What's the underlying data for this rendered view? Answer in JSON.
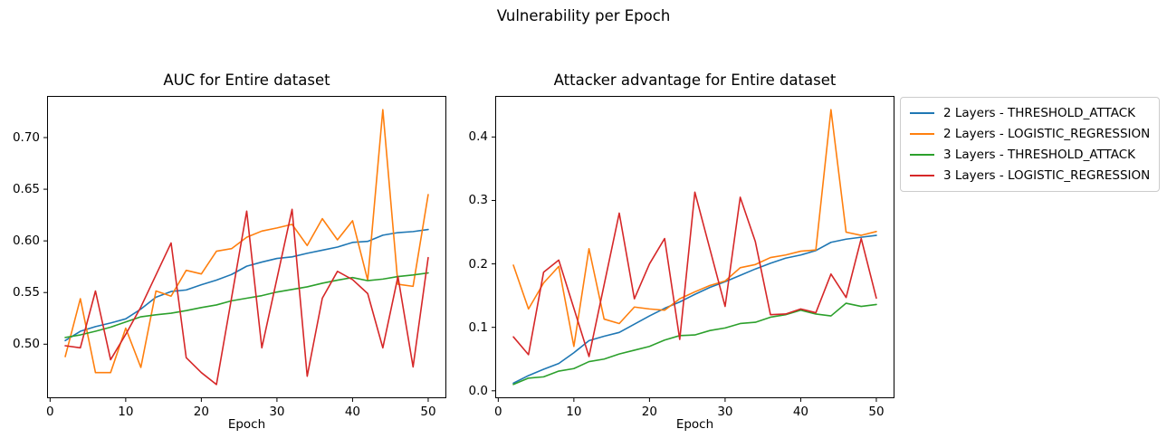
{
  "figure": {
    "title": "Vulnerability per Epoch",
    "background": "#ffffff"
  },
  "legend": {
    "entries": [
      {
        "label": "2 Layers - THRESHOLD_ATTACK",
        "color": "#1f77b4"
      },
      {
        "label": "2 Layers - LOGISTIC_REGRESSION",
        "color": "#ff7f0e"
      },
      {
        "label": "3 Layers - THRESHOLD_ATTACK",
        "color": "#2ca02c"
      },
      {
        "label": "3 Layers - LOGISTIC_REGRESSION",
        "color": "#d62728"
      }
    ]
  },
  "chart_data": [
    {
      "type": "line",
      "title": "AUC for Entire dataset",
      "xlabel": "Epoch",
      "ylabel": "",
      "grid": false,
      "x": [
        2,
        4,
        6,
        8,
        10,
        12,
        14,
        16,
        18,
        20,
        22,
        24,
        26,
        28,
        30,
        32,
        34,
        36,
        38,
        40,
        42,
        44,
        46,
        48,
        50
      ],
      "xlim": [
        -0.4,
        52.4
      ],
      "ylim": [
        0.4477,
        0.7403
      ],
      "x_ticks": {
        "values": [
          0,
          10,
          20,
          30,
          40,
          50
        ],
        "labels": [
          "0",
          "10",
          "20",
          "30",
          "40",
          "50"
        ]
      },
      "y_ticks": {
        "values": [
          0.5,
          0.55,
          0.6,
          0.65,
          0.7
        ],
        "labels": [
          "0.50",
          "0.55",
          "0.60",
          "0.65",
          "0.70"
        ]
      },
      "series": [
        {
          "name": "2 Layers - THRESHOLD_ATTACK",
          "color": "#1f77b4",
          "values": [
            0.5035,
            0.5125,
            0.517,
            0.5205,
            0.5245,
            0.534,
            0.5455,
            0.551,
            0.5525,
            0.5575,
            0.562,
            0.5675,
            0.5755,
            0.5795,
            0.583,
            0.5845,
            0.588,
            0.591,
            0.594,
            0.5985,
            0.5995,
            0.6055,
            0.608,
            0.609,
            0.611
          ]
        },
        {
          "name": "2 Layers - LOGISTIC_REGRESSION",
          "color": "#ff7f0e",
          "values": [
            0.488,
            0.544,
            0.4725,
            0.4725,
            0.5155,
            0.4775,
            0.5515,
            0.5465,
            0.5715,
            0.568,
            0.59,
            0.5925,
            0.6035,
            0.6095,
            0.6125,
            0.616,
            0.5955,
            0.6215,
            0.601,
            0.6195,
            0.562,
            0.727,
            0.558,
            0.556,
            0.6448
          ]
        },
        {
          "name": "3 Layers - THRESHOLD_ATTACK",
          "color": "#2ca02c",
          "values": [
            0.5065,
            0.509,
            0.5125,
            0.5165,
            0.5215,
            0.5265,
            0.5285,
            0.53,
            0.5325,
            0.5355,
            0.538,
            0.542,
            0.5445,
            0.547,
            0.5505,
            0.553,
            0.5555,
            0.559,
            0.562,
            0.5645,
            0.5615,
            0.563,
            0.5655,
            0.567,
            0.569
          ]
        },
        {
          "name": "3 Layers - LOGISTIC_REGRESSION",
          "color": "#d62728",
          "values": [
            0.4985,
            0.4965,
            0.5515,
            0.485,
            0.5095,
            0.536,
            0.567,
            0.598,
            0.487,
            0.4725,
            0.461,
            0.545,
            0.6288,
            0.4965,
            0.5635,
            0.6305,
            0.469,
            0.5445,
            0.5705,
            0.5625,
            0.549,
            0.4965,
            0.5655,
            0.478,
            0.5838
          ]
        }
      ]
    },
    {
      "type": "line",
      "title": "Attacker advantage for Entire dataset",
      "xlabel": "Epoch",
      "ylabel": "",
      "grid": false,
      "x": [
        2,
        4,
        6,
        8,
        10,
        12,
        14,
        16,
        18,
        20,
        22,
        24,
        26,
        28,
        30,
        32,
        34,
        36,
        38,
        40,
        42,
        44,
        46,
        48,
        50
      ],
      "xlim": [
        -0.4,
        52.4
      ],
      "ylim": [
        -0.0117,
        0.4647
      ],
      "x_ticks": {
        "values": [
          0,
          10,
          20,
          30,
          40,
          50
        ],
        "labels": [
          "0",
          "10",
          "20",
          "30",
          "40",
          "50"
        ]
      },
      "y_ticks": {
        "values": [
          0.0,
          0.1,
          0.2,
          0.3,
          0.4
        ],
        "labels": [
          "0.0",
          "0.1",
          "0.2",
          "0.3",
          "0.4"
        ]
      },
      "series": [
        {
          "name": "2 Layers - THRESHOLD_ATTACK",
          "color": "#1f77b4",
          "values": [
            0.012,
            0.024,
            0.034,
            0.043,
            0.06,
            0.079,
            0.086,
            0.092,
            0.105,
            0.118,
            0.13,
            0.14,
            0.152,
            0.163,
            0.172,
            0.182,
            0.192,
            0.201,
            0.209,
            0.214,
            0.221,
            0.234,
            0.239,
            0.242,
            0.245
          ]
        },
        {
          "name": "2 Layers - LOGISTIC_REGRESSION",
          "color": "#ff7f0e",
          "values": [
            0.198,
            0.129,
            0.17,
            0.196,
            0.07,
            0.224,
            0.113,
            0.106,
            0.132,
            0.129,
            0.127,
            0.145,
            0.156,
            0.166,
            0.173,
            0.194,
            0.199,
            0.21,
            0.214,
            0.22,
            0.222,
            0.443,
            0.25,
            0.245,
            0.251
          ]
        },
        {
          "name": "3 Layers - THRESHOLD_ATTACK",
          "color": "#2ca02c",
          "values": [
            0.01,
            0.02,
            0.022,
            0.031,
            0.035,
            0.046,
            0.05,
            0.058,
            0.064,
            0.07,
            0.08,
            0.087,
            0.088,
            0.095,
            0.099,
            0.106,
            0.108,
            0.116,
            0.12,
            0.127,
            0.121,
            0.118,
            0.138,
            0.133,
            0.136
          ]
        },
        {
          "name": "3 Layers - LOGISTIC_REGRESSION",
          "color": "#d62728",
          "values": [
            0.085,
            0.057,
            0.187,
            0.206,
            0.13,
            0.054,
            0.167,
            0.28,
            0.145,
            0.2,
            0.24,
            0.081,
            0.313,
            0.223,
            0.133,
            0.305,
            0.235,
            0.12,
            0.121,
            0.129,
            0.123,
            0.184,
            0.147,
            0.24,
            0.146
          ]
        }
      ]
    }
  ]
}
